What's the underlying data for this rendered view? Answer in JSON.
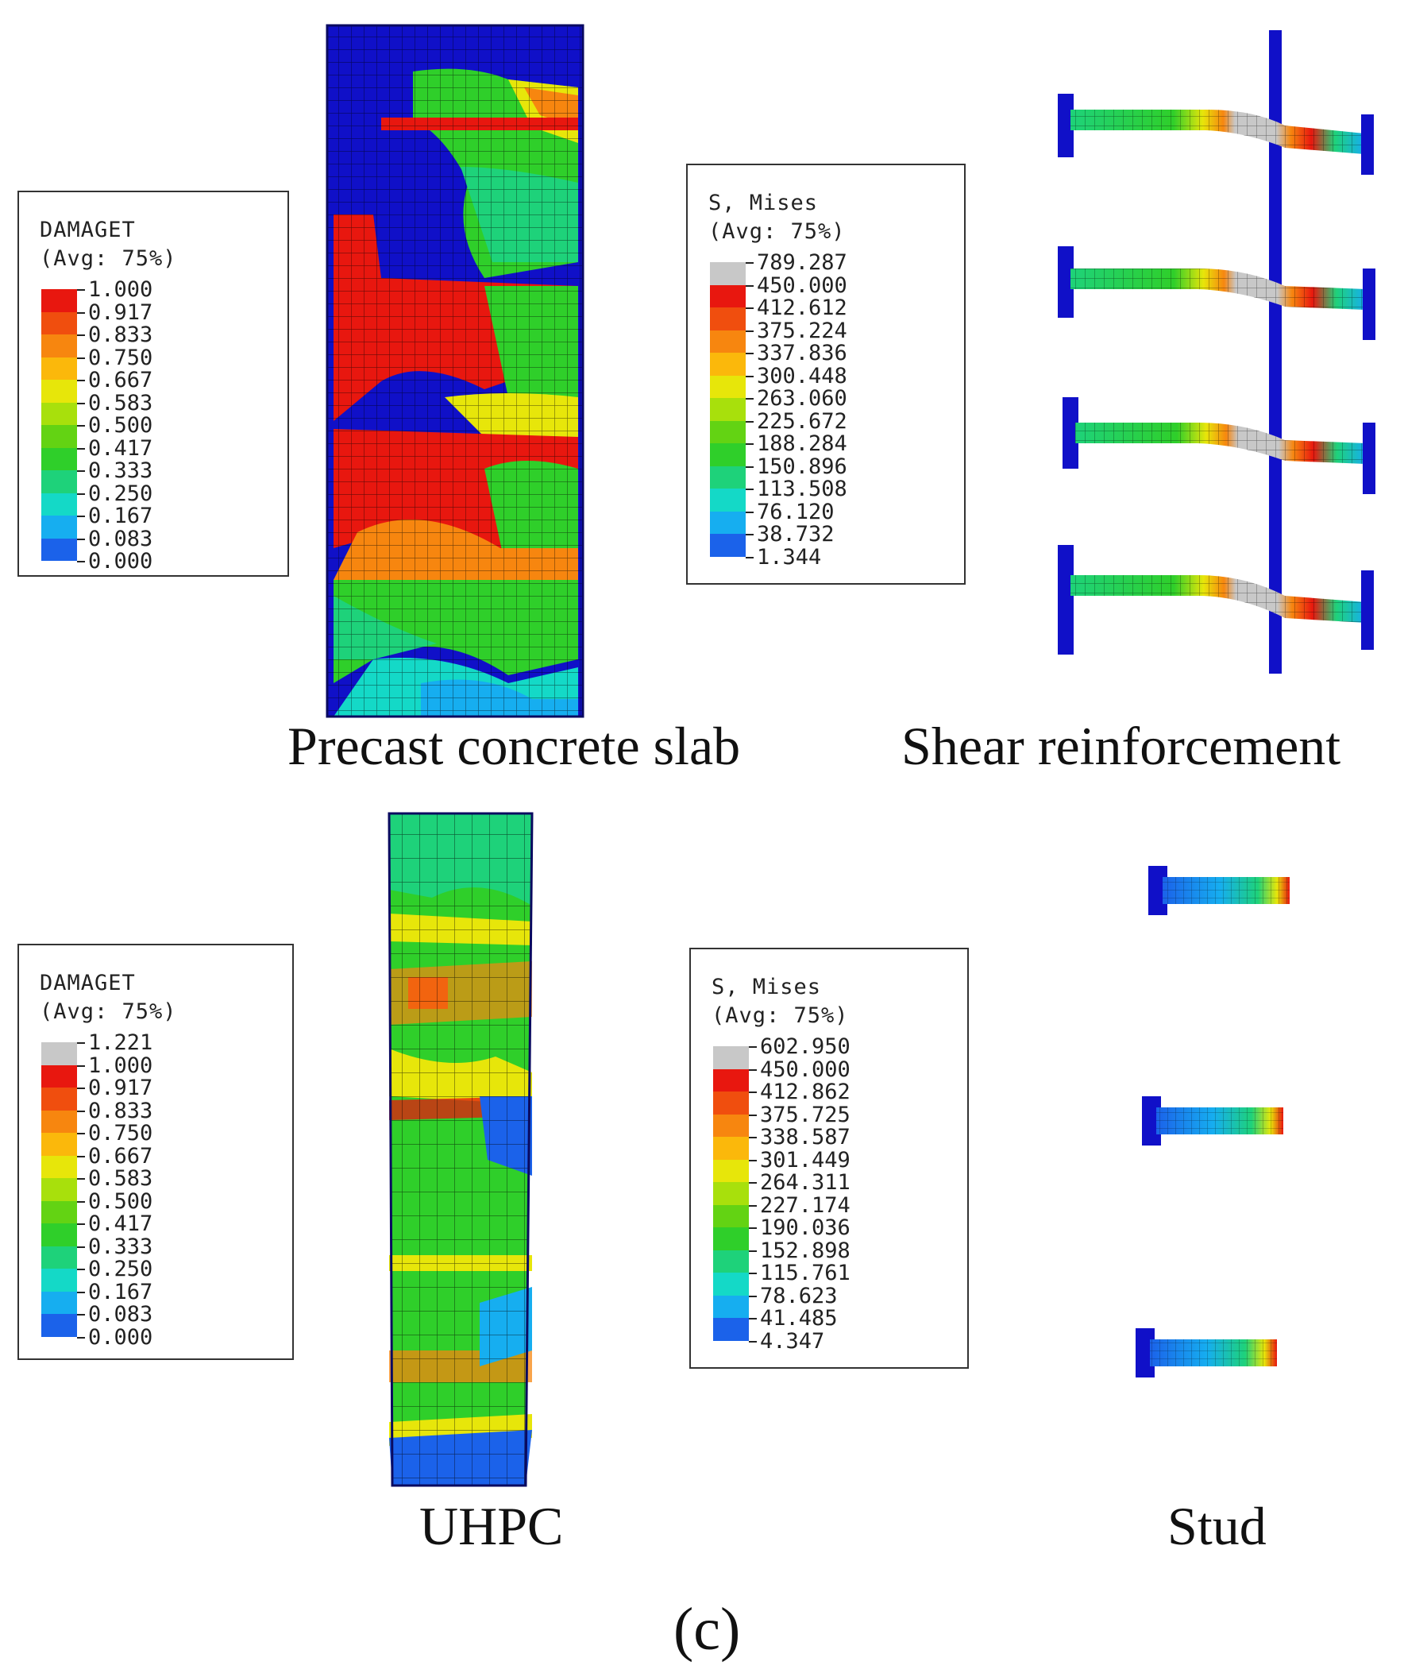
{
  "legends": [
    {
      "id": "slab-damage",
      "title": "DAMAGET",
      "subtitle": "(Avg: 75%)",
      "values": [
        "1.000",
        "0.917",
        "0.833",
        "0.750",
        "0.667",
        "0.583",
        "0.500",
        "0.417",
        "0.333",
        "0.250",
        "0.167",
        "0.083",
        "0.000"
      ],
      "colors": [
        "#e8170f",
        "#f04e0e",
        "#f7860f",
        "#fbb80b",
        "#e7e60a",
        "#a8e00c",
        "#63d313",
        "#2fcf2a",
        "#1ed27a",
        "#14d9c7",
        "#16aef0",
        "#1b62ea",
        "#1111e0"
      ]
    },
    {
      "id": "shear-mises",
      "title": "S, Mises",
      "subtitle": "(Avg: 75%)",
      "values": [
        "789.287",
        "450.000",
        "412.612",
        "375.224",
        "337.836",
        "300.448",
        "263.060",
        "225.672",
        "188.284",
        "150.896",
        "113.508",
        "76.120",
        "38.732",
        "1.344"
      ],
      "colors": [
        "#c8c8c8",
        "#e8170f",
        "#f04e0e",
        "#f7860f",
        "#fbb80b",
        "#e7e60a",
        "#a8e00c",
        "#63d313",
        "#2fcf2a",
        "#1ed27a",
        "#14d9c7",
        "#16aef0",
        "#1b62ea",
        "#1111e0"
      ]
    },
    {
      "id": "uhpc-damage",
      "title": "DAMAGET",
      "subtitle": "(Avg: 75%)",
      "values": [
        "1.221",
        "1.000",
        "0.917",
        "0.833",
        "0.750",
        "0.667",
        "0.583",
        "0.500",
        "0.417",
        "0.333",
        "0.250",
        "0.167",
        "0.083",
        "0.000"
      ],
      "colors": [
        "#c8c8c8",
        "#e8170f",
        "#f04e0e",
        "#f7860f",
        "#fbb80b",
        "#e7e60a",
        "#a8e00c",
        "#63d313",
        "#2fcf2a",
        "#1ed27a",
        "#14d9c7",
        "#16aef0",
        "#1b62ea",
        "#1111e0"
      ]
    },
    {
      "id": "stud-mises",
      "title": "S, Mises",
      "subtitle": "(Avg: 75%)",
      "values": [
        "602.950",
        "450.000",
        "412.862",
        "375.725",
        "338.587",
        "301.449",
        "264.311",
        "227.174",
        "190.036",
        "152.898",
        "115.761",
        "78.623",
        "41.485",
        "4.347"
      ],
      "colors": [
        "#c8c8c8",
        "#e8170f",
        "#f04e0e",
        "#f7860f",
        "#fbb80b",
        "#e7e60a",
        "#a8e00c",
        "#63d313",
        "#2fcf2a",
        "#1ed27a",
        "#14d9c7",
        "#16aef0",
        "#1b62ea",
        "#1111e0"
      ]
    }
  ],
  "captions": {
    "slab": "Precast concrete slab",
    "shear": "Shear reinforcement",
    "uhpc": "UHPC",
    "stud": "Stud"
  },
  "figure_label": "(c)",
  "colors": {
    "blue": "#1010c8",
    "red": "#e8170f",
    "green": "#2fcf2a",
    "cyan": "#1ed27a",
    "yellow": "#e7e60a",
    "orange": "#f7860f",
    "grey": "#c8c8c8"
  }
}
